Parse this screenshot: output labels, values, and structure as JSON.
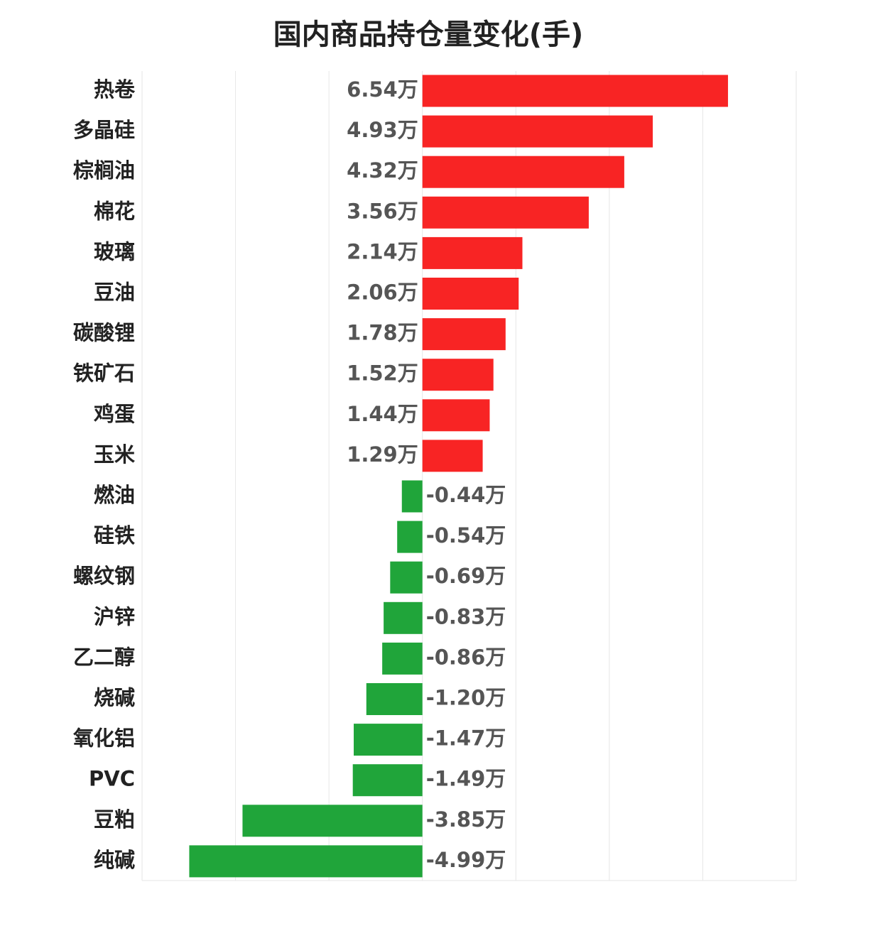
{
  "chart_data": {
    "type": "bar",
    "orientation": "horizontal",
    "title": "国内商品持仓量变化(手)",
    "xlabel": "",
    "ylabel": "",
    "unit_suffix": "万",
    "xlim": [
      -6,
      8
    ],
    "grid": true,
    "colors": {
      "positive": "#f82424",
      "negative": "#20a53a"
    },
    "categories": [
      "热卷",
      "多晶硅",
      "棕榈油",
      "棉花",
      "玻璃",
      "豆油",
      "碳酸锂",
      "铁矿石",
      "鸡蛋",
      "玉米",
      "燃油",
      "硅铁",
      "螺纹钢",
      "沪锌",
      "乙二醇",
      "烧碱",
      "氧化铝",
      "PVC",
      "豆粕",
      "纯碱"
    ],
    "values": [
      6.54,
      4.93,
      4.32,
      3.56,
      2.14,
      2.06,
      1.78,
      1.52,
      1.44,
      1.29,
      -0.44,
      -0.54,
      -0.69,
      -0.83,
      -0.86,
      -1.2,
      -1.47,
      -1.49,
      -3.85,
      -4.99
    ],
    "value_labels": [
      "6.54万",
      "4.93万",
      "4.32万",
      "3.56万",
      "2.14万",
      "2.06万",
      "1.78万",
      "1.52万",
      "1.44万",
      "1.29万",
      "-0.44万",
      "-0.54万",
      "-0.69万",
      "-0.83万",
      "-0.86万",
      "-1.20万",
      "-1.47万",
      "-1.49万",
      "-3.85万",
      "-4.99万"
    ]
  }
}
